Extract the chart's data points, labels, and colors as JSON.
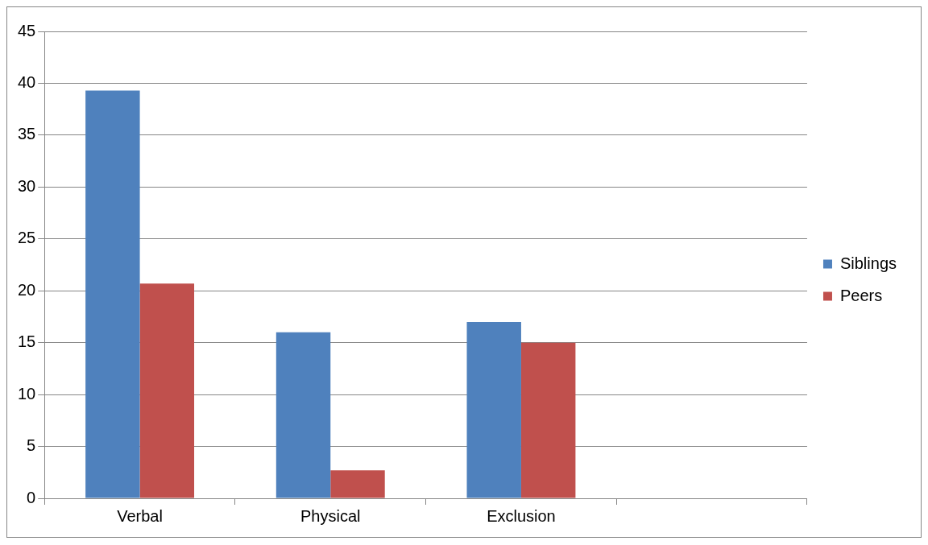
{
  "chart_data": {
    "type": "bar",
    "categories": [
      "Verbal",
      "Physical",
      "Exclusion",
      null
    ],
    "series": [
      {
        "name": "Siblings",
        "color": "#4f81bd",
        "values": [
          39.3,
          16.0,
          17.0,
          null
        ]
      },
      {
        "name": "Peers",
        "color": "#c0504d",
        "values": [
          20.7,
          2.7,
          15.0,
          null
        ]
      }
    ],
    "ylim": [
      0,
      45
    ],
    "yticks": [
      0,
      5,
      10,
      15,
      20,
      25,
      30,
      35,
      40,
      45
    ],
    "grid": "y",
    "legend": "right"
  }
}
